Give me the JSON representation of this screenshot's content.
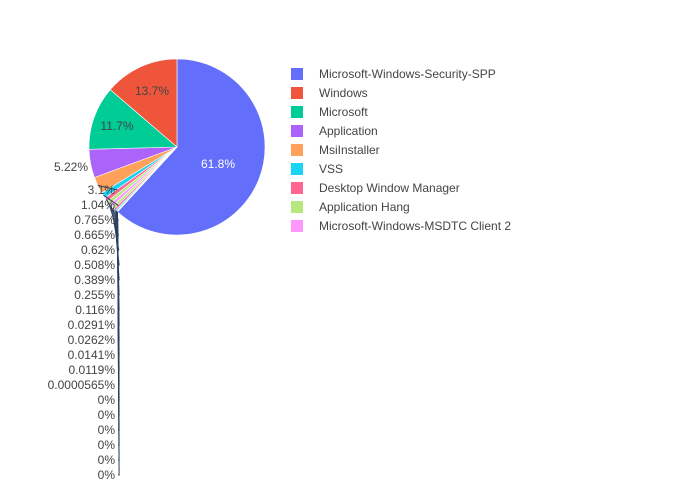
{
  "chart_data": {
    "type": "pie",
    "direction": "clockwise",
    "slices": [
      {
        "label": "Microsoft-Windows-Security-SPP",
        "percent_text": "61.8%",
        "value": 61.8,
        "color": "#636efa"
      },
      {
        "label": "",
        "percent_text": "0%",
        "value": 0,
        "color": "#ab63fa"
      },
      {
        "label": "",
        "percent_text": "0%",
        "value": 0,
        "color": "#ffa15a"
      },
      {
        "label": "",
        "percent_text": "0%",
        "value": 0,
        "color": "#19d3f3"
      },
      {
        "label": "",
        "percent_text": "0%",
        "value": 0,
        "color": "#ff6692"
      },
      {
        "label": "",
        "percent_text": "0%",
        "value": 0,
        "color": "#b6e880"
      },
      {
        "label": "",
        "percent_text": "0%",
        "value": 0,
        "color": "#ff97ff"
      },
      {
        "label": "",
        "percent_text": "0.0000565%",
        "value": 5.65e-05,
        "color": "#fecb52"
      },
      {
        "label": "",
        "percent_text": "0.0119%",
        "value": 0.0119,
        "color": "#636efa"
      },
      {
        "label": "",
        "percent_text": "0.0141%",
        "value": 0.0141,
        "color": "#ef553b"
      },
      {
        "label": "",
        "percent_text": "0.0262%",
        "value": 0.0262,
        "color": "#00cc96"
      },
      {
        "label": "",
        "percent_text": "0.0291%",
        "value": 0.0291,
        "color": "#ab63fa"
      },
      {
        "label": "",
        "percent_text": "0.116%",
        "value": 0.116,
        "color": "#ffa15a"
      },
      {
        "label": "",
        "percent_text": "0.255%",
        "value": 0.255,
        "color": "#19d3f3"
      },
      {
        "label": "",
        "percent_text": "0.389%",
        "value": 0.389,
        "color": "#ff6692"
      },
      {
        "label": "",
        "percent_text": "0.508%",
        "value": 0.508,
        "color": "#b6e880"
      },
      {
        "label": "Microsoft-Windows-MSDTC Client 2",
        "percent_text": "0.62%",
        "value": 0.62,
        "color": "#ff97ff"
      },
      {
        "label": "Application Hang",
        "percent_text": "0.665%",
        "value": 0.665,
        "color": "#b6e880"
      },
      {
        "label": "Desktop Window Manager",
        "percent_text": "0.765%",
        "value": 0.765,
        "color": "#ff6692"
      },
      {
        "label": "VSS",
        "percent_text": "1.04%",
        "value": 1.04,
        "color": "#19d3f3"
      },
      {
        "label": "MsiInstaller",
        "percent_text": "3.1%",
        "value": 3.1,
        "color": "#ffa15a"
      },
      {
        "label": "Application",
        "percent_text": "5.22%",
        "value": 5.22,
        "color": "#ab63fa"
      },
      {
        "label": "Microsoft",
        "percent_text": "11.7%",
        "value": 11.7,
        "color": "#00cc96"
      },
      {
        "label": "Windows",
        "percent_text": "13.7%",
        "value": 13.7,
        "color": "#ef553b"
      }
    ],
    "legend": {
      "position": "right",
      "entries": [
        {
          "label": "Microsoft-Windows-Security-SPP",
          "color": "#636efa"
        },
        {
          "label": "Windows",
          "color": "#ef553b"
        },
        {
          "label": "Microsoft",
          "color": "#00cc96"
        },
        {
          "label": "Application",
          "color": "#ab63fa"
        },
        {
          "label": "MsiInstaller",
          "color": "#ffa15a"
        },
        {
          "label": "VSS",
          "color": "#19d3f3"
        },
        {
          "label": "Desktop Window Manager",
          "color": "#ff6692"
        },
        {
          "label": "Application Hang",
          "color": "#b6e880"
        },
        {
          "label": "Microsoft-Windows-MSDTC Client 2",
          "color": "#ff97ff"
        }
      ]
    },
    "outside_labels_order": [
      "5.22%",
      "3.1%",
      "1.04%",
      "0.765%",
      "0.665%",
      "0.62%",
      "0.508%",
      "0.389%",
      "0.255%",
      "0.116%",
      "0.0291%",
      "0.0262%",
      "0.0141%",
      "0.0119%",
      "0.0000565%",
      "0%",
      "0%",
      "0%",
      "0%",
      "0%",
      "0%"
    ],
    "inside_labels": [
      "61.8%",
      "13.7%",
      "11.7%"
    ]
  }
}
